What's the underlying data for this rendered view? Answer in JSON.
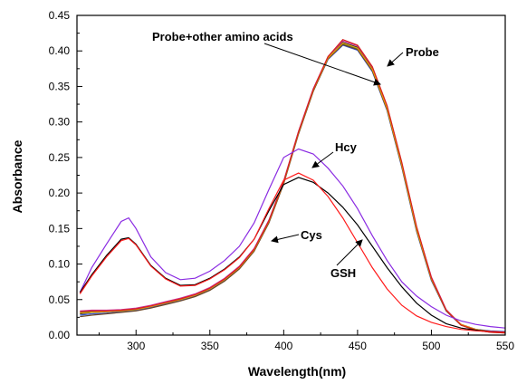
{
  "chart_data": {
    "type": "line",
    "title": "",
    "xlabel": "Wavelength(nm)",
    "ylabel": "Absorbance",
    "xlim": [
      260,
      550
    ],
    "ylim": [
      0.0,
      0.45
    ],
    "x_ticks": [
      "300",
      "350",
      "400",
      "450",
      "500",
      "550"
    ],
    "x_tick_values": [
      300,
      350,
      400,
      450,
      500,
      550
    ],
    "y_ticks": [
      "0.00",
      "0.05",
      "0.10",
      "0.15",
      "0.20",
      "0.25",
      "0.30",
      "0.35",
      "0.40",
      "0.45"
    ],
    "y_tick_values": [
      0.0,
      0.05,
      0.1,
      0.15,
      0.2,
      0.25,
      0.3,
      0.35,
      0.4,
      0.45
    ],
    "grid": false,
    "annotations": [
      {
        "text": "Probe+other amino acids"
      },
      {
        "text": "Probe"
      },
      {
        "text": "Hcy"
      },
      {
        "text": "Cys"
      },
      {
        "text": "GSH"
      }
    ],
    "series": [
      {
        "color": "#1a1a1a",
        "x": [
          262,
          270,
          280,
          290,
          300,
          310,
          320,
          330,
          340,
          350,
          360,
          370,
          380,
          390,
          400,
          410,
          420,
          430,
          440,
          450,
          460,
          470,
          480,
          490,
          500,
          510,
          520,
          530,
          540,
          550
        ],
        "y": [
          0.03,
          0.032,
          0.033,
          0.034,
          0.036,
          0.04,
          0.045,
          0.05,
          0.056,
          0.065,
          0.078,
          0.095,
          0.12,
          0.16,
          0.215,
          0.285,
          0.345,
          0.39,
          0.412,
          0.405,
          0.375,
          0.32,
          0.24,
          0.15,
          0.08,
          0.035,
          0.015,
          0.008,
          0.005,
          0.004
        ]
      },
      {
        "color": "#2e8b57",
        "x": [
          262,
          270,
          280,
          290,
          300,
          310,
          320,
          330,
          340,
          350,
          360,
          370,
          380,
          390,
          400,
          410,
          420,
          430,
          440,
          450,
          460,
          470,
          480,
          490,
          500,
          510,
          520,
          530,
          540,
          550
        ],
        "y": [
          0.032,
          0.033,
          0.034,
          0.035,
          0.037,
          0.041,
          0.046,
          0.051,
          0.057,
          0.066,
          0.079,
          0.096,
          0.121,
          0.161,
          0.216,
          0.286,
          0.346,
          0.391,
          0.41,
          0.403,
          0.373,
          0.318,
          0.238,
          0.148,
          0.078,
          0.034,
          0.014,
          0.007,
          0.005,
          0.004
        ]
      },
      {
        "color": "#3355cc",
        "x": [
          262,
          270,
          280,
          290,
          300,
          310,
          320,
          330,
          340,
          350,
          360,
          370,
          380,
          390,
          400,
          410,
          420,
          430,
          440,
          450,
          460,
          470,
          480,
          490,
          500,
          510,
          520,
          530,
          540,
          550
        ],
        "y": [
          0.028,
          0.03,
          0.031,
          0.033,
          0.035,
          0.039,
          0.044,
          0.049,
          0.055,
          0.064,
          0.077,
          0.094,
          0.119,
          0.159,
          0.214,
          0.284,
          0.344,
          0.388,
          0.408,
          0.401,
          0.371,
          0.316,
          0.236,
          0.146,
          0.077,
          0.034,
          0.015,
          0.008,
          0.006,
          0.005
        ]
      },
      {
        "color": "#cc3399",
        "x": [
          262,
          270,
          280,
          290,
          300,
          310,
          320,
          330,
          340,
          350,
          360,
          370,
          380,
          390,
          400,
          410,
          420,
          430,
          440,
          450,
          460,
          470,
          480,
          490,
          500,
          510,
          520,
          530,
          540,
          550
        ],
        "y": [
          0.034,
          0.035,
          0.035,
          0.036,
          0.038,
          0.042,
          0.047,
          0.052,
          0.058,
          0.067,
          0.08,
          0.097,
          0.122,
          0.162,
          0.217,
          0.287,
          0.347,
          0.392,
          0.414,
          0.407,
          0.377,
          0.322,
          0.242,
          0.152,
          0.082,
          0.036,
          0.015,
          0.008,
          0.005,
          0.004
        ]
      },
      {
        "color": "#6b4423",
        "x": [
          262,
          270,
          280,
          290,
          300,
          310,
          320,
          330,
          340,
          350,
          360,
          370,
          380,
          390,
          400,
          410,
          420,
          430,
          440,
          450,
          460,
          470,
          480,
          490,
          500,
          510,
          520,
          530,
          540,
          550
        ],
        "y": [
          0.026,
          0.028,
          0.03,
          0.032,
          0.034,
          0.038,
          0.043,
          0.048,
          0.054,
          0.063,
          0.076,
          0.093,
          0.118,
          0.158,
          0.213,
          0.283,
          0.343,
          0.389,
          0.409,
          0.402,
          0.372,
          0.317,
          0.237,
          0.147,
          0.078,
          0.034,
          0.014,
          0.007,
          0.004,
          0.003
        ]
      },
      {
        "color": "#e8a000",
        "x": [
          262,
          270,
          280,
          290,
          300,
          310,
          320,
          330,
          340,
          350,
          360,
          370,
          380,
          390,
          400,
          410,
          420,
          430,
          440,
          450,
          460,
          470,
          480,
          490,
          500,
          510,
          520,
          530,
          540,
          550
        ],
        "y": [
          0.031,
          0.032,
          0.033,
          0.034,
          0.036,
          0.04,
          0.045,
          0.05,
          0.056,
          0.065,
          0.078,
          0.095,
          0.12,
          0.16,
          0.215,
          0.285,
          0.345,
          0.39,
          0.411,
          0.404,
          0.374,
          0.319,
          0.239,
          0.149,
          0.079,
          0.035,
          0.015,
          0.008,
          0.005,
          0.004
        ]
      },
      {
        "color": "#d62020",
        "x": [
          262,
          270,
          280,
          290,
          300,
          310,
          320,
          330,
          340,
          350,
          360,
          370,
          380,
          390,
          400,
          410,
          420,
          430,
          440,
          450,
          460,
          470,
          480,
          490,
          500,
          510,
          520,
          530,
          540,
          550
        ],
        "y": [
          0.033,
          0.034,
          0.034,
          0.035,
          0.037,
          0.041,
          0.046,
          0.051,
          0.057,
          0.066,
          0.079,
          0.096,
          0.121,
          0.161,
          0.216,
          0.286,
          0.346,
          0.392,
          0.416,
          0.408,
          0.378,
          0.323,
          0.243,
          0.153,
          0.081,
          0.035,
          0.014,
          0.007,
          0.004,
          0.003
        ]
      },
      {
        "color": "#8a2be2",
        "x": [
          262,
          270,
          280,
          290,
          295,
          300,
          310,
          320,
          330,
          340,
          350,
          360,
          370,
          380,
          390,
          400,
          410,
          420,
          430,
          440,
          450,
          460,
          470,
          480,
          490,
          500,
          510,
          520,
          530,
          540,
          550
        ],
        "y": [
          0.06,
          0.095,
          0.128,
          0.16,
          0.165,
          0.15,
          0.11,
          0.088,
          0.078,
          0.08,
          0.09,
          0.105,
          0.125,
          0.158,
          0.205,
          0.25,
          0.262,
          0.255,
          0.235,
          0.21,
          0.178,
          0.14,
          0.105,
          0.075,
          0.055,
          0.04,
          0.028,
          0.02,
          0.015,
          0.012,
          0.01
        ]
      },
      {
        "color": "#000000",
        "x": [
          262,
          270,
          280,
          290,
          295,
          300,
          310,
          320,
          330,
          340,
          350,
          360,
          370,
          380,
          390,
          400,
          410,
          420,
          430,
          440,
          450,
          460,
          470,
          480,
          490,
          500,
          510,
          520,
          530,
          540,
          550
        ],
        "y": [
          0.06,
          0.085,
          0.112,
          0.135,
          0.137,
          0.128,
          0.098,
          0.08,
          0.07,
          0.071,
          0.08,
          0.093,
          0.11,
          0.135,
          0.175,
          0.212,
          0.222,
          0.215,
          0.2,
          0.18,
          0.155,
          0.125,
          0.095,
          0.068,
          0.045,
          0.028,
          0.016,
          0.01,
          0.007,
          0.005,
          0.004
        ]
      },
      {
        "color": "#ff1a1a",
        "x": [
          262,
          270,
          280,
          290,
          295,
          300,
          310,
          320,
          330,
          340,
          350,
          360,
          370,
          380,
          390,
          400,
          410,
          420,
          430,
          440,
          450,
          460,
          470,
          480,
          490,
          500,
          510,
          520,
          530,
          540,
          550
        ],
        "y": [
          0.058,
          0.083,
          0.11,
          0.133,
          0.136,
          0.127,
          0.097,
          0.079,
          0.069,
          0.07,
          0.079,
          0.092,
          0.109,
          0.135,
          0.178,
          0.218,
          0.228,
          0.218,
          0.195,
          0.165,
          0.13,
          0.095,
          0.065,
          0.042,
          0.027,
          0.018,
          0.012,
          0.008,
          0.006,
          0.005,
          0.004
        ]
      }
    ]
  }
}
